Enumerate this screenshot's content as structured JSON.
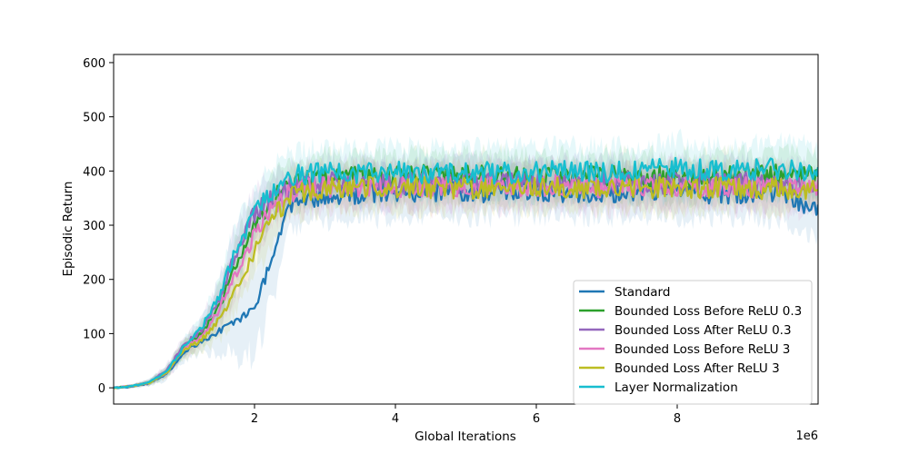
{
  "chart_data": {
    "type": "line",
    "title": "",
    "xlabel": "Global Iterations",
    "ylabel": "Episodic Return",
    "x_offset_label": "1e6",
    "xlim": [
      0,
      10000000
    ],
    "ylim": [
      -30,
      615
    ],
    "xticks": [
      2000000,
      4000000,
      6000000,
      8000000
    ],
    "xtick_labels": [
      "2",
      "4",
      "6",
      "8"
    ],
    "yticks": [
      0,
      100,
      200,
      300,
      400,
      500,
      600
    ],
    "ytick_labels": [
      "0",
      "100",
      "200",
      "300",
      "400",
      "500",
      "600"
    ],
    "grid": false,
    "legend_position": "lower-right",
    "shaded_band": "variability band around each series",
    "x": [
      0,
      250000,
      500000,
      750000,
      1000000,
      1250000,
      1500000,
      1750000,
      2000000,
      2250000,
      2500000,
      2750000,
      3000000,
      3500000,
      4000000,
      4500000,
      5000000,
      5500000,
      6000000,
      6500000,
      7000000,
      7500000,
      8000000,
      8500000,
      9000000,
      9500000,
      10000000
    ],
    "series": [
      {
        "name": "Standard",
        "color": "#1f77b4",
        "values": [
          0,
          2,
          8,
          25,
          65,
          85,
          105,
          125,
          145,
          240,
          330,
          350,
          352,
          358,
          360,
          362,
          360,
          362,
          364,
          362,
          360,
          362,
          360,
          358,
          360,
          355,
          325
        ],
        "band": [
          2,
          3,
          5,
          10,
          15,
          20,
          40,
          60,
          90,
          70,
          40,
          40,
          45,
          45,
          45,
          45,
          45,
          45,
          45,
          45,
          45,
          45,
          45,
          45,
          45,
          45,
          45
        ]
      },
      {
        "name": "Bounded Loss Before ReLU 0.3",
        "color": "#2ca02c",
        "values": [
          0,
          3,
          9,
          30,
          75,
          100,
          150,
          230,
          300,
          350,
          372,
          382,
          390,
          388,
          390,
          392,
          390,
          392,
          388,
          390,
          392,
          390,
          388,
          390,
          392,
          392,
          390
        ],
        "band": [
          2,
          3,
          5,
          10,
          15,
          20,
          35,
          45,
          45,
          40,
          40,
          40,
          40,
          40,
          40,
          40,
          40,
          40,
          40,
          40,
          40,
          40,
          40,
          40,
          40,
          40,
          40
        ]
      },
      {
        "name": "Bounded Loss After ReLU 0.3",
        "color": "#9467bd",
        "values": [
          0,
          3,
          10,
          32,
          78,
          108,
          165,
          255,
          320,
          355,
          370,
          375,
          378,
          378,
          376,
          380,
          378,
          380,
          378,
          378,
          380,
          378,
          378,
          380,
          378,
          375,
          372
        ],
        "band": [
          2,
          3,
          5,
          10,
          15,
          20,
          35,
          45,
          45,
          40,
          40,
          40,
          40,
          40,
          40,
          40,
          40,
          40,
          40,
          40,
          40,
          40,
          40,
          40,
          40,
          40,
          40
        ]
      },
      {
        "name": "Bounded Loss Before ReLU 3",
        "color": "#e377c2",
        "values": [
          0,
          3,
          9,
          28,
          72,
          95,
          145,
          215,
          285,
          335,
          360,
          368,
          370,
          372,
          370,
          372,
          370,
          372,
          374,
          372,
          370,
          372,
          370,
          372,
          370,
          368,
          366
        ],
        "band": [
          2,
          3,
          5,
          10,
          15,
          20,
          35,
          45,
          45,
          40,
          40,
          40,
          40,
          40,
          40,
          40,
          40,
          40,
          40,
          40,
          40,
          40,
          40,
          40,
          40,
          40,
          40
        ]
      },
      {
        "name": "Bounded Loss After ReLU 3",
        "color": "#bcbd22",
        "values": [
          0,
          3,
          9,
          27,
          70,
          88,
          125,
          190,
          250,
          310,
          355,
          365,
          368,
          370,
          368,
          370,
          368,
          370,
          372,
          370,
          368,
          370,
          368,
          370,
          368,
          368,
          366
        ],
        "band": [
          2,
          3,
          5,
          10,
          15,
          20,
          35,
          45,
          45,
          40,
          40,
          40,
          40,
          40,
          40,
          40,
          40,
          40,
          40,
          40,
          40,
          40,
          40,
          40,
          40,
          40,
          40
        ]
      },
      {
        "name": "Layer Normalization",
        "color": "#17becf",
        "values": [
          0,
          3,
          10,
          30,
          76,
          110,
          170,
          260,
          320,
          365,
          388,
          395,
          398,
          396,
          398,
          396,
          398,
          396,
          398,
          400,
          398,
          400,
          405,
          400,
          402,
          405,
          400
        ],
        "band": [
          2,
          3,
          5,
          10,
          15,
          20,
          35,
          45,
          45,
          45,
          45,
          45,
          45,
          45,
          45,
          45,
          45,
          45,
          45,
          45,
          45,
          45,
          50,
          45,
          45,
          45,
          45
        ]
      }
    ]
  }
}
